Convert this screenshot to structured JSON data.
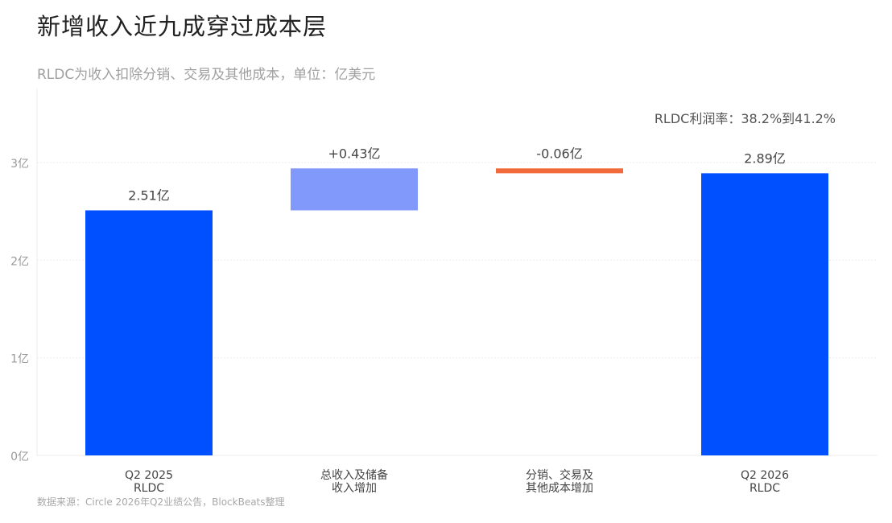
{
  "header": {
    "title": "新增收入近九成穿过成本层",
    "subtitle": "RLDC为收入扣除分销、交易及其他成本，单位：亿美元",
    "note": "RLDC利润率：38.2%到41.2%"
  },
  "footer": {
    "source": "数据来源：Circle 2026年Q2业绩公告，BlockBeats整理"
  },
  "colors": {
    "total": "#0050ff",
    "increase": "#8099fb",
    "decrease": "#f06a3c",
    "grid": "#ececec",
    "label": "#444444",
    "tick": "#9a9a9a"
  },
  "chart_data": {
    "type": "bar",
    "subtype": "waterfall",
    "ylim": [
      0,
      3.2
    ],
    "grid": true,
    "yticks": [
      {
        "value": 0,
        "label": "0亿"
      },
      {
        "value": 1,
        "label": "1亿"
      },
      {
        "value": 2,
        "label": "2亿"
      },
      {
        "value": 3,
        "label": "3亿"
      }
    ],
    "categories": [
      [
        "Q2 2025",
        "RLDC"
      ],
      [
        "总收入及储备",
        "收入增加"
      ],
      [
        "分销、交易及",
        "其他成本增加"
      ],
      [
        "Q2 2026",
        "RLDC"
      ]
    ],
    "bars": [
      {
        "kind": "total",
        "start": 0,
        "end": 2.51,
        "label": "2.51亿"
      },
      {
        "kind": "increase",
        "start": 2.51,
        "end": 2.94,
        "label": "+0.43亿"
      },
      {
        "kind": "decrease",
        "start": 2.94,
        "end": 2.89,
        "label": "-0.06亿"
      },
      {
        "kind": "total",
        "start": 0,
        "end": 2.89,
        "label": "2.89亿"
      }
    ]
  }
}
